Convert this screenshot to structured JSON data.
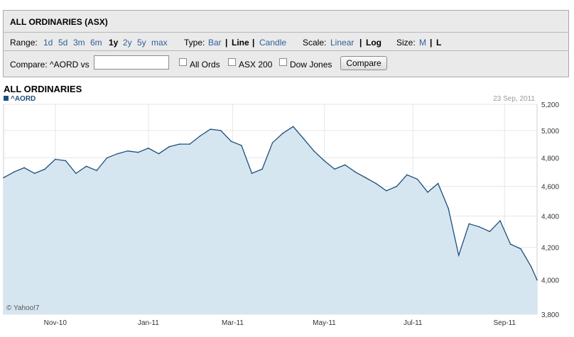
{
  "header": {
    "title": "ALL ORDINARIES (ASX)"
  },
  "range": {
    "label": "Range:",
    "options": [
      "1d",
      "5d",
      "3m",
      "6m",
      "1y",
      "2y",
      "5y",
      "max"
    ],
    "selected": "1y"
  },
  "type": {
    "label": "Type:",
    "options": [
      "Bar",
      "Line",
      "Candle"
    ],
    "selected": "Line"
  },
  "scale": {
    "label": "Scale:",
    "options": [
      "Linear",
      "Log"
    ],
    "selected": "Log"
  },
  "size": {
    "label": "Size:",
    "options": [
      "M",
      "L"
    ],
    "selected": "L"
  },
  "compare": {
    "label": "Compare: ^AORD vs",
    "input_value": "",
    "checkboxes": [
      "All Ords",
      "ASX 200",
      "Dow Jones"
    ],
    "button": "Compare"
  },
  "chart": {
    "title": "ALL ORDINARIES",
    "legend": "^AORD",
    "date": "23 Sep, 2011",
    "credit": "© Yahoo!7"
  },
  "colors": {
    "line": "#1e4f7a",
    "fill": "#d6e6f1",
    "link": "#2f5f9e",
    "panel_bg": "#eaeaea"
  },
  "chart_data": {
    "type": "area",
    "x": [
      "2010-09-27",
      "2010-10-04",
      "2010-10-11",
      "2010-10-18",
      "2010-10-25",
      "2010-11-01",
      "2010-11-08",
      "2010-11-15",
      "2010-11-22",
      "2010-11-29",
      "2010-12-06",
      "2010-12-13",
      "2010-12-20",
      "2010-12-27",
      "2011-01-03",
      "2011-01-10",
      "2011-01-17",
      "2011-01-24",
      "2011-01-31",
      "2011-02-07",
      "2011-02-14",
      "2011-02-21",
      "2011-02-28",
      "2011-03-07",
      "2011-03-14",
      "2011-03-21",
      "2011-03-28",
      "2011-04-04",
      "2011-04-11",
      "2011-04-18",
      "2011-04-25",
      "2011-05-02",
      "2011-05-09",
      "2011-05-16",
      "2011-05-23",
      "2011-05-30",
      "2011-06-06",
      "2011-06-13",
      "2011-06-20",
      "2011-06-27",
      "2011-07-04",
      "2011-07-11",
      "2011-07-18",
      "2011-07-25",
      "2011-08-01",
      "2011-08-08",
      "2011-08-15",
      "2011-08-22",
      "2011-08-29",
      "2011-09-05",
      "2011-09-12",
      "2011-09-19",
      "2011-09-23"
    ],
    "series": [
      {
        "values": [
          4660,
          4700,
          4730,
          4690,
          4720,
          4790,
          4780,
          4690,
          4740,
          4710,
          4800,
          4830,
          4850,
          4840,
          4870,
          4830,
          4880,
          4900,
          4900,
          4960,
          5010,
          5000,
          4920,
          4890,
          4690,
          4720,
          4910,
          4980,
          5030,
          4940,
          4850,
          4780,
          4720,
          4750,
          4700,
          4660,
          4620,
          4570,
          4600,
          4680,
          4650,
          4560,
          4620,
          4450,
          4150,
          4350,
          4330,
          4300,
          4370,
          4220,
          4190,
          4080,
          4000
        ]
      }
    ],
    "xlabel": "",
    "ylabel": "",
    "xticks": [
      "Nov-10",
      "Jan-11",
      "Mar-11",
      "May-11",
      "Jul-11",
      "Sep-11"
    ],
    "xtick_dates": [
      "2010-11-01",
      "2011-01-03",
      "2011-03-01",
      "2011-05-02",
      "2011-07-01",
      "2011-09-01"
    ],
    "yticks": [
      "5,200",
      "5,000",
      "4,800",
      "4,600",
      "4,400",
      "4,200",
      "4,000",
      "3,800"
    ],
    "ytick_values": [
      5200,
      5000,
      4800,
      4600,
      4400,
      4200,
      4000,
      3800
    ],
    "ylim": [
      3800,
      5200
    ],
    "grid": true,
    "y_axis_side": "right"
  }
}
